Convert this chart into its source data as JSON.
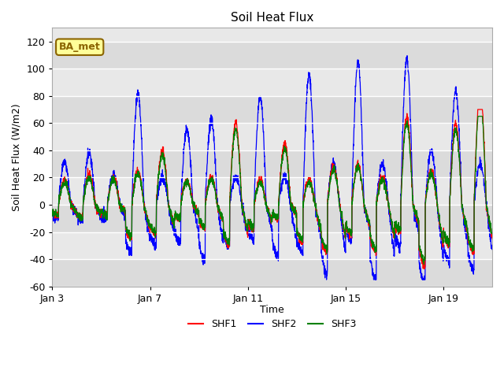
{
  "title": "Soil Heat Flux",
  "ylabel": "Soil Heat Flux (W/m2)",
  "xlabel": "Time",
  "ylim": [
    -60,
    130
  ],
  "yticks": [
    -60,
    -40,
    -20,
    0,
    20,
    40,
    60,
    80,
    100,
    120
  ],
  "xtick_labels": [
    "Jan 3",
    "Jan 7",
    "Jan 11",
    "Jan 15",
    "Jan 19"
  ],
  "legend_labels": [
    "SHF1",
    "SHF2",
    "SHF3"
  ],
  "line_colors": [
    "red",
    "blue",
    "green"
  ],
  "annotation_text": "BA_met",
  "annotation_bg": "#FFFF99",
  "annotation_border": "#8B6400",
  "plot_bg": "#E8E8E8",
  "grid_color": "white",
  "band_colors": [
    "#DCDCDC",
    "#E8E8E8"
  ],
  "n_days": 18,
  "ppd": 144,
  "seed": 42
}
